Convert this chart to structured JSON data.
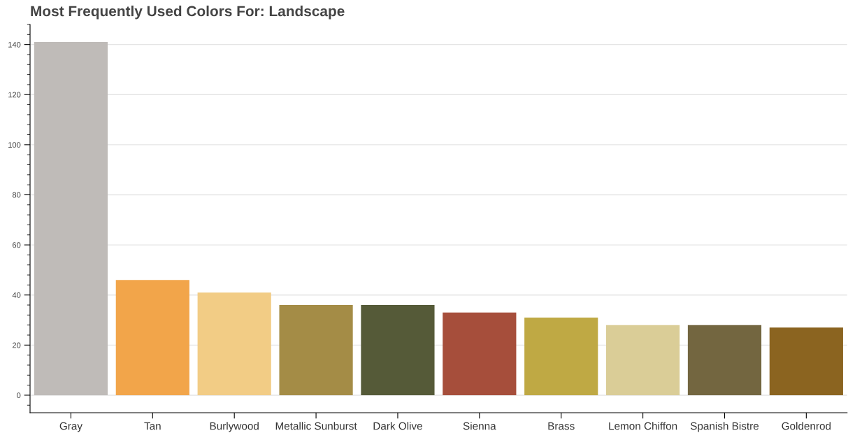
{
  "chart_data": {
    "type": "bar",
    "title": "Most Frequently Used Colors For: Landscape",
    "categories": [
      "Gray",
      "Tan",
      "Burlywood",
      "Metallic Sunburst",
      "Dark Olive",
      "Sienna",
      "Brass",
      "Lemon Chiffon",
      "Spanish Bistre",
      "Goldenrod"
    ],
    "values": [
      141,
      46,
      41,
      36,
      36,
      33,
      31,
      28,
      28,
      27
    ],
    "colors": [
      "#bfbbb8",
      "#f2a54a",
      "#f2cc85",
      "#a48c46",
      "#555a38",
      "#a64e3b",
      "#bfa944",
      "#dacd97",
      "#736640",
      "#8b6420"
    ],
    "ylim": [
      -7,
      148
    ],
    "yticks": [
      0,
      20,
      40,
      60,
      80,
      100,
      120,
      140
    ],
    "grid": "y",
    "legend": false
  }
}
